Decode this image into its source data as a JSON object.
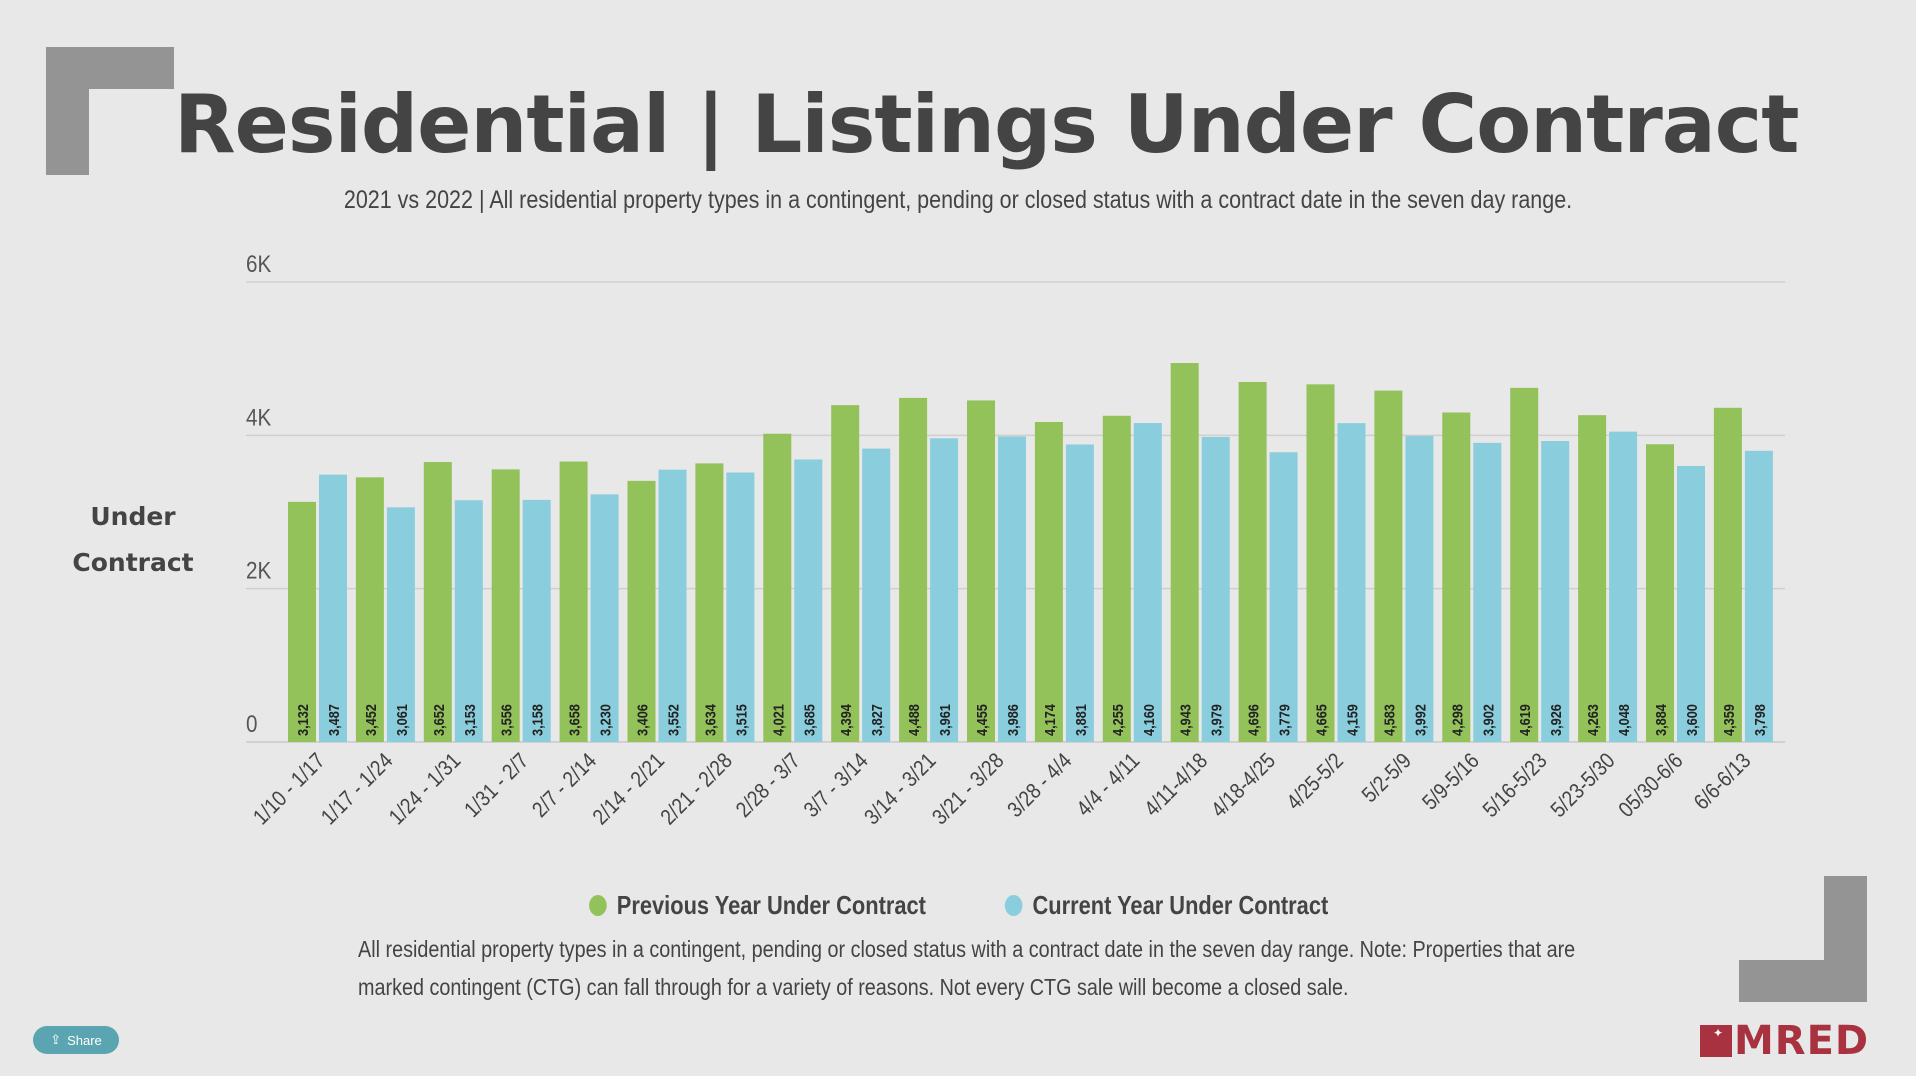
{
  "header": {
    "title": "Residential | Listings Under Contract",
    "subtitle": "2021 vs 2022 | All residential property types in a contingent, pending or closed status with a contract date in the seven day range."
  },
  "chart_data": {
    "type": "bar",
    "title": "Residential | Listings Under Contract",
    "subtitle": "2021 vs 2022 | All residential property types in a contingent, pending or closed status with a contract date in the seven day range.",
    "xlabel": "",
    "ylabel": "Under Contract",
    "ylim": [
      0,
      6000
    ],
    "yticks": [
      0,
      2000,
      4000,
      6000
    ],
    "ytick_labels": [
      "0",
      "2K",
      "4K",
      "6K"
    ],
    "grid": true,
    "legend_position": "bottom",
    "categories": [
      "1/10 - 1/17",
      "1/17 - 1/24",
      "1/24 - 1/31",
      "1/31 - 2/7",
      "2/7 - 2/14",
      "2/14 - 2/21",
      "2/21 - 2/28",
      "2/28 - 3/7",
      "3/7 - 3/14",
      "3/14 - 3/21",
      "3/21 - 3/28",
      "3/28 - 4/4",
      "4/4 - 4/11",
      "4/11-4/18",
      "4/18-4/25",
      "4/25-5/2",
      "5/2-5/9",
      "5/9-5/16",
      "5/16-5/23",
      "5/23-5/30",
      "05/30-6/6",
      "6/6-6/13"
    ],
    "series": [
      {
        "name": "Previous Year Under Contract",
        "color": "#93c15a",
        "values": [
          3132,
          3452,
          3652,
          3556,
          3658,
          3406,
          3634,
          4021,
          4394,
          4488,
          4455,
          4174,
          4255,
          4943,
          4696,
          4665,
          4583,
          4298,
          4619,
          4263,
          3884,
          4359
        ]
      },
      {
        "name": "Current Year Under Contract",
        "color": "#8acddd",
        "values": [
          3487,
          3061,
          3153,
          3158,
          3230,
          3552,
          3515,
          3685,
          3827,
          3961,
          3986,
          3881,
          4160,
          3979,
          3779,
          4159,
          3992,
          3902,
          3926,
          4048,
          3600,
          3798
        ]
      }
    ]
  },
  "axis": {
    "ylabel_line1": "Under",
    "ylabel_line2": "Contract"
  },
  "legend": [
    {
      "label": "Previous Year Under Contract",
      "color": "#93c15a"
    },
    {
      "label": "Current Year Under Contract",
      "color": "#8acddd"
    }
  ],
  "footnote": {
    "line1": "All residential property types in a contingent, pending or closed status with a contract date in the seven day range. Note: Properties that are",
    "line2": "marked contingent (CTG) can fall through for a variety of reasons. Not every CTG sale will become a closed sale."
  },
  "share_button": {
    "label": "Share",
    "icon": "share-icon"
  },
  "logo": {
    "text": "MRED",
    "color": "#a8323f"
  }
}
